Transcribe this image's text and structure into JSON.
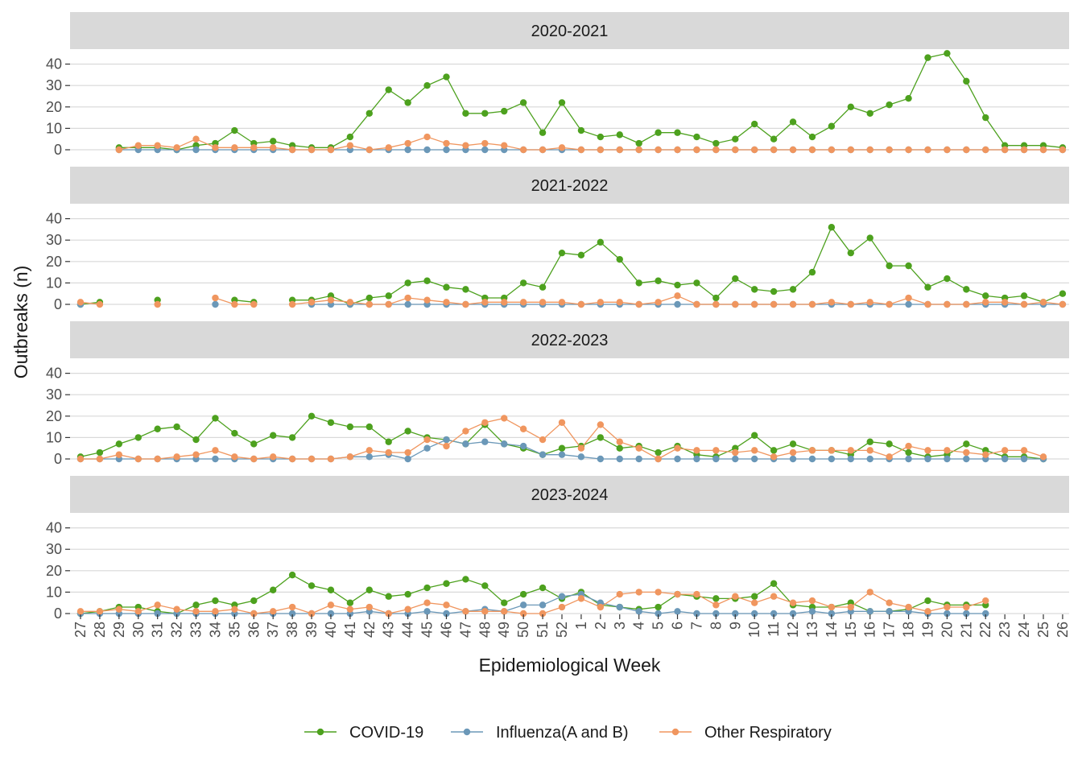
{
  "chart_data": {
    "type": "line",
    "xlabel": "Epidemiological Week",
    "ylabel": "Outbreaks (n)",
    "ylim": [
      0,
      45
    ],
    "yticks": [
      0,
      10,
      20,
      30,
      40
    ],
    "grid": true,
    "legend_position": "bottom",
    "weeks": [
      "27",
      "28",
      "29",
      "30",
      "31",
      "32",
      "33",
      "34",
      "35",
      "36",
      "37",
      "38",
      "39",
      "40",
      "41",
      "42",
      "43",
      "44",
      "45",
      "46",
      "47",
      "48",
      "49",
      "50",
      "51",
      "52",
      "1",
      "2",
      "3",
      "4",
      "5",
      "6",
      "7",
      "8",
      "9",
      "10",
      "11",
      "12",
      "13",
      "14",
      "15",
      "16",
      "17",
      "18",
      "19",
      "20",
      "21",
      "22",
      "23",
      "24",
      "25",
      "26"
    ],
    "series_meta": [
      {
        "name": "COVID-19",
        "color": "#4da11e"
      },
      {
        "name": "Influenza(A and B)",
        "color": "#6b98b8"
      },
      {
        "name": "Other Respiratory",
        "color": "#f0965f"
      }
    ],
    "panels": [
      {
        "title": "2020-2021",
        "series": [
          {
            "name": "COVID-19",
            "values": [
              null,
              null,
              1,
              1,
              1,
              0,
              2,
              3,
              9,
              3,
              4,
              2,
              1,
              1,
              6,
              17,
              28,
              22,
              30,
              34,
              17,
              17,
              18,
              22,
              8,
              22,
              9,
              6,
              7,
              3,
              8,
              8,
              6,
              3,
              5,
              12,
              5,
              13,
              6,
              11,
              20,
              17,
              21,
              24,
              43,
              45,
              32,
              15,
              2,
              2,
              2,
              1
            ]
          },
          {
            "name": "Influenza(A and B)",
            "values": [
              null,
              null,
              0,
              0,
              0,
              0,
              0,
              0,
              0,
              0,
              0,
              0,
              0,
              0,
              0,
              0,
              0,
              0,
              0,
              0,
              0,
              0,
              0,
              0,
              0,
              0,
              0,
              0,
              0,
              0,
              0,
              0,
              0,
              0,
              0,
              0,
              0,
              0,
              0,
              0,
              0,
              0,
              0,
              0,
              0,
              0,
              0,
              0,
              0,
              0,
              0,
              0
            ]
          },
          {
            "name": "Other Respiratory",
            "values": [
              null,
              null,
              0,
              2,
              2,
              1,
              5,
              1,
              1,
              1,
              1,
              0,
              0,
              0,
              2,
              0,
              1,
              3,
              6,
              3,
              2,
              3,
              2,
              0,
              0,
              1,
              0,
              0,
              0,
              0,
              0,
              0,
              0,
              0,
              0,
              0,
              0,
              0,
              0,
              0,
              0,
              0,
              0,
              0,
              0,
              0,
              0,
              0,
              0,
              0,
              0,
              0
            ]
          }
        ]
      },
      {
        "title": "2021-2022",
        "series": [
          {
            "name": "COVID-19",
            "values": [
              0,
              1,
              null,
              null,
              2,
              null,
              null,
              null,
              2,
              1,
              null,
              2,
              2,
              4,
              0,
              3,
              4,
              10,
              11,
              8,
              7,
              3,
              3,
              10,
              8,
              24,
              23,
              29,
              21,
              10,
              11,
              9,
              10,
              3,
              12,
              7,
              6,
              7,
              15,
              36,
              24,
              31,
              18,
              18,
              8,
              12,
              7,
              4,
              3,
              4,
              1,
              5
            ]
          },
          {
            "name": "Influenza(A and B)",
            "values": [
              0,
              null,
              null,
              null,
              null,
              null,
              null,
              0,
              null,
              null,
              null,
              null,
              0,
              0,
              0,
              0,
              0,
              0,
              0,
              0,
              0,
              0,
              0,
              0,
              0,
              0,
              0,
              0,
              0,
              0,
              0,
              0,
              0,
              0,
              0,
              0,
              0,
              0,
              0,
              0,
              0,
              0,
              0,
              0,
              0,
              0,
              0,
              0,
              0,
              0,
              0,
              0
            ]
          },
          {
            "name": "Other Respiratory",
            "values": [
              1,
              0,
              null,
              null,
              0,
              null,
              null,
              3,
              0,
              0,
              null,
              0,
              1,
              2,
              1,
              0,
              0,
              3,
              2,
              1,
              0,
              1,
              1,
              1,
              1,
              1,
              0,
              1,
              1,
              0,
              1,
              4,
              0,
              0,
              0,
              0,
              0,
              0,
              0,
              1,
              0,
              1,
              0,
              3,
              0,
              0,
              0,
              1,
              1,
              0,
              1,
              0
            ]
          }
        ]
      },
      {
        "title": "2022-2023",
        "series": [
          {
            "name": "COVID-19",
            "values": [
              1,
              3,
              7,
              10,
              14,
              15,
              9,
              19,
              12,
              7,
              11,
              10,
              20,
              17,
              15,
              15,
              8,
              13,
              10,
              9,
              7,
              16,
              7,
              5,
              2,
              5,
              6,
              10,
              5,
              6,
              3,
              6,
              2,
              1,
              5,
              11,
              4,
              7,
              4,
              4,
              2,
              8,
              7,
              3,
              1,
              2,
              7,
              4,
              1,
              1,
              0,
              null
            ]
          },
          {
            "name": "Influenza(A and B)",
            "values": [
              0,
              0,
              0,
              0,
              0,
              0,
              0,
              0,
              0,
              0,
              0,
              0,
              0,
              0,
              1,
              1,
              2,
              0,
              5,
              9,
              7,
              8,
              7,
              6,
              2,
              2,
              1,
              0,
              0,
              0,
              0,
              0,
              0,
              0,
              0,
              0,
              0,
              0,
              0,
              0,
              0,
              0,
              0,
              0,
              0,
              0,
              0,
              0,
              0,
              0,
              0,
              null
            ]
          },
          {
            "name": "Other Respiratory",
            "values": [
              0,
              0,
              2,
              0,
              0,
              1,
              2,
              4,
              1,
              0,
              1,
              0,
              0,
              0,
              1,
              4,
              3,
              3,
              9,
              6,
              13,
              17,
              19,
              14,
              9,
              17,
              5,
              16,
              8,
              5,
              0,
              5,
              4,
              4,
              3,
              4,
              1,
              3,
              4,
              4,
              4,
              4,
              1,
              6,
              4,
              4,
              3,
              2,
              4,
              4,
              1,
              null
            ]
          }
        ]
      },
      {
        "title": "2023-2024",
        "series": [
          {
            "name": "COVID-19",
            "values": [
              0,
              1,
              3,
              3,
              1,
              0,
              4,
              6,
              4,
              6,
              11,
              18,
              13,
              11,
              5,
              11,
              8,
              9,
              12,
              14,
              16,
              13,
              5,
              9,
              12,
              7,
              10,
              4,
              3,
              2,
              3,
              9,
              8,
              7,
              7,
              8,
              14,
              4,
              3,
              3,
              5,
              1,
              1,
              2,
              6,
              4,
              4,
              4,
              null,
              null,
              null,
              null
            ]
          },
          {
            "name": "Influenza(A and B)",
            "values": [
              0,
              0,
              0,
              0,
              0,
              0,
              0,
              0,
              0,
              0,
              0,
              0,
              0,
              0,
              0,
              1,
              0,
              0,
              1,
              0,
              1,
              2,
              1,
              4,
              4,
              8,
              9,
              5,
              3,
              1,
              0,
              1,
              0,
              0,
              0,
              0,
              0,
              0,
              1,
              0,
              1,
              1,
              1,
              1,
              0,
              0,
              0,
              0,
              null,
              null,
              null,
              null
            ]
          },
          {
            "name": "Other Respiratory",
            "values": [
              1,
              1,
              2,
              1,
              4,
              2,
              1,
              1,
              2,
              0,
              1,
              3,
              0,
              4,
              2,
              3,
              0,
              2,
              5,
              4,
              1,
              1,
              1,
              0,
              0,
              3,
              7,
              3,
              9,
              10,
              10,
              9,
              9,
              4,
              8,
              5,
              8,
              5,
              6,
              3,
              3,
              10,
              5,
              3,
              1,
              3,
              3,
              6,
              null,
              null,
              null,
              null
            ]
          }
        ]
      }
    ]
  }
}
